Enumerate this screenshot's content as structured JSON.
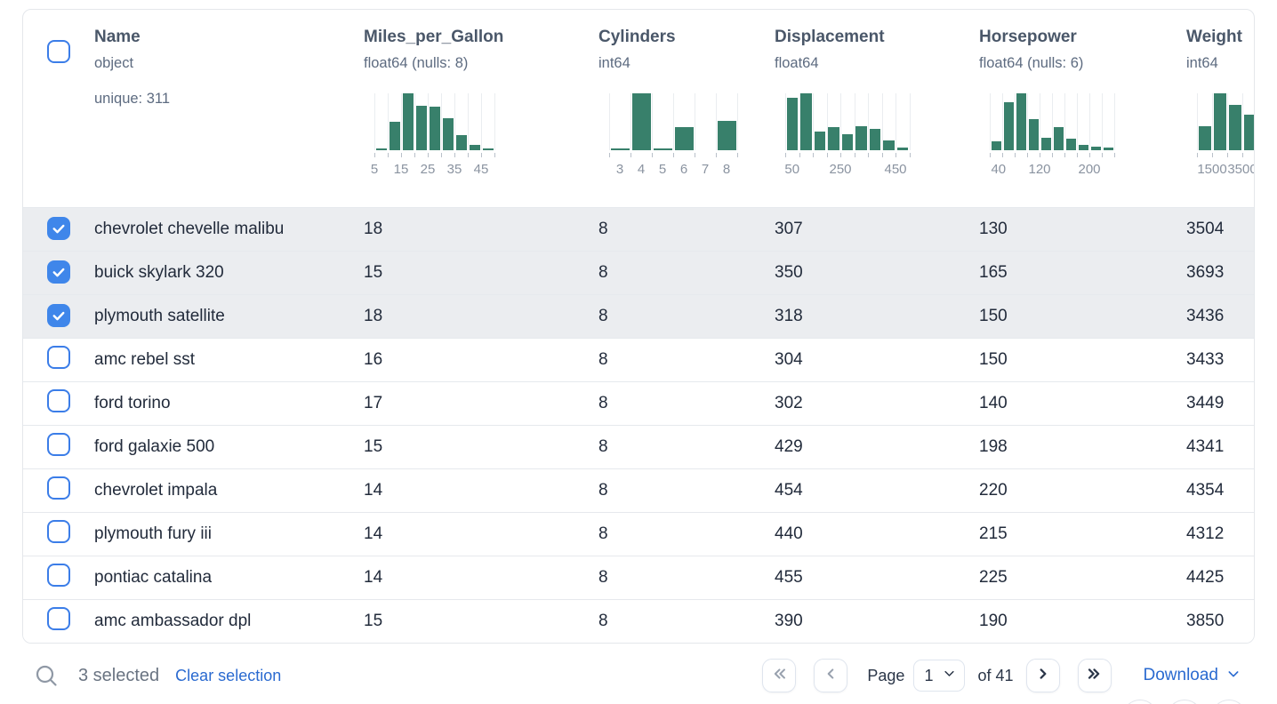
{
  "table": {
    "select_all_checked": false,
    "columns": [
      {
        "title": "Name",
        "dtype": "object",
        "extra": "unique: 311",
        "histogram": null
      },
      {
        "title": "Miles_per_Gallon",
        "dtype": "float64 (nulls: 8)",
        "histogram": {
          "bin_width": 15,
          "bins": [
            3,
            50,
            100,
            78,
            77,
            56,
            27,
            9,
            3
          ],
          "labels": [
            {
              "at": 0,
              "text": "5"
            },
            {
              "at": 2,
              "text": "15"
            },
            {
              "at": 4,
              "text": "25"
            },
            {
              "at": 6,
              "text": "35"
            },
            {
              "at": 8,
              "text": "45"
            }
          ]
        }
      },
      {
        "title": "Cylinders",
        "dtype": "int64",
        "histogram": {
          "bin_width": 24,
          "bins": [
            3,
            100,
            3,
            40,
            0,
            52
          ],
          "labels": [
            {
              "at": 0.5,
              "text": "3"
            },
            {
              "at": 1.5,
              "text": "4"
            },
            {
              "at": 2.5,
              "text": "5"
            },
            {
              "at": 3.5,
              "text": "6"
            },
            {
              "at": 4.5,
              "text": "7"
            },
            {
              "at": 5.5,
              "text": "8"
            }
          ]
        }
      },
      {
        "title": "Displacement",
        "dtype": "float64",
        "histogram": {
          "bin_width": 15.5,
          "bins": [
            92,
            100,
            33,
            40,
            28,
            42,
            37,
            17,
            5
          ],
          "labels": [
            {
              "at": 0.5,
              "text": "50"
            },
            {
              "at": 4,
              "text": "250"
            },
            {
              "at": 8,
              "text": "450"
            }
          ]
        }
      },
      {
        "title": "Horsepower",
        "dtype": "float64 (nulls: 6)",
        "histogram": {
          "bin_width": 14,
          "bins": [
            15,
            85,
            100,
            55,
            22,
            40,
            20,
            10,
            7,
            5
          ],
          "labels": [
            {
              "at": 0.7,
              "text": "40"
            },
            {
              "at": 4,
              "text": "120"
            },
            {
              "at": 8,
              "text": "200"
            }
          ]
        }
      },
      {
        "title": "Weight",
        "dtype": "int64",
        "histogram": {
          "bin_width": 17,
          "bins": [
            42,
            100,
            80,
            62
          ],
          "labels": [
            {
              "at": 1,
              "text": "1500"
            },
            {
              "at": 3,
              "text": "3500"
            }
          ]
        }
      }
    ],
    "rows": [
      {
        "selected": true,
        "name": "chevrolet chevelle malibu",
        "values": [
          "18",
          "8",
          "307",
          "130",
          "3504"
        ]
      },
      {
        "selected": true,
        "name": "buick skylark 320",
        "values": [
          "15",
          "8",
          "350",
          "165",
          "3693"
        ]
      },
      {
        "selected": true,
        "name": "plymouth satellite",
        "values": [
          "18",
          "8",
          "318",
          "150",
          "3436"
        ]
      },
      {
        "selected": false,
        "name": "amc rebel sst",
        "values": [
          "16",
          "8",
          "304",
          "150",
          "3433"
        ]
      },
      {
        "selected": false,
        "name": "ford torino",
        "values": [
          "17",
          "8",
          "302",
          "140",
          "3449"
        ]
      },
      {
        "selected": false,
        "name": "ford galaxie 500",
        "values": [
          "15",
          "8",
          "429",
          "198",
          "4341"
        ]
      },
      {
        "selected": false,
        "name": "chevrolet impala",
        "values": [
          "14",
          "8",
          "454",
          "220",
          "4354"
        ]
      },
      {
        "selected": false,
        "name": "plymouth fury iii",
        "values": [
          "14",
          "8",
          "440",
          "215",
          "4312"
        ]
      },
      {
        "selected": false,
        "name": "pontiac catalina",
        "values": [
          "14",
          "8",
          "455",
          "225",
          "4425"
        ]
      },
      {
        "selected": false,
        "name": "amc ambassador dpl",
        "values": [
          "15",
          "8",
          "390",
          "190",
          "3850"
        ]
      }
    ]
  },
  "footer": {
    "selected_count": "3 selected",
    "clear_selection": "Clear selection",
    "page_label": "Page",
    "page_value": "1",
    "page_total": "of 41",
    "download_label": "Download"
  },
  "colors": {
    "accent_blue": "#3f86ea",
    "link_blue": "#2a6ad0",
    "histogram_green": "#38806b",
    "selected_row_bg": "#ebedf0"
  }
}
